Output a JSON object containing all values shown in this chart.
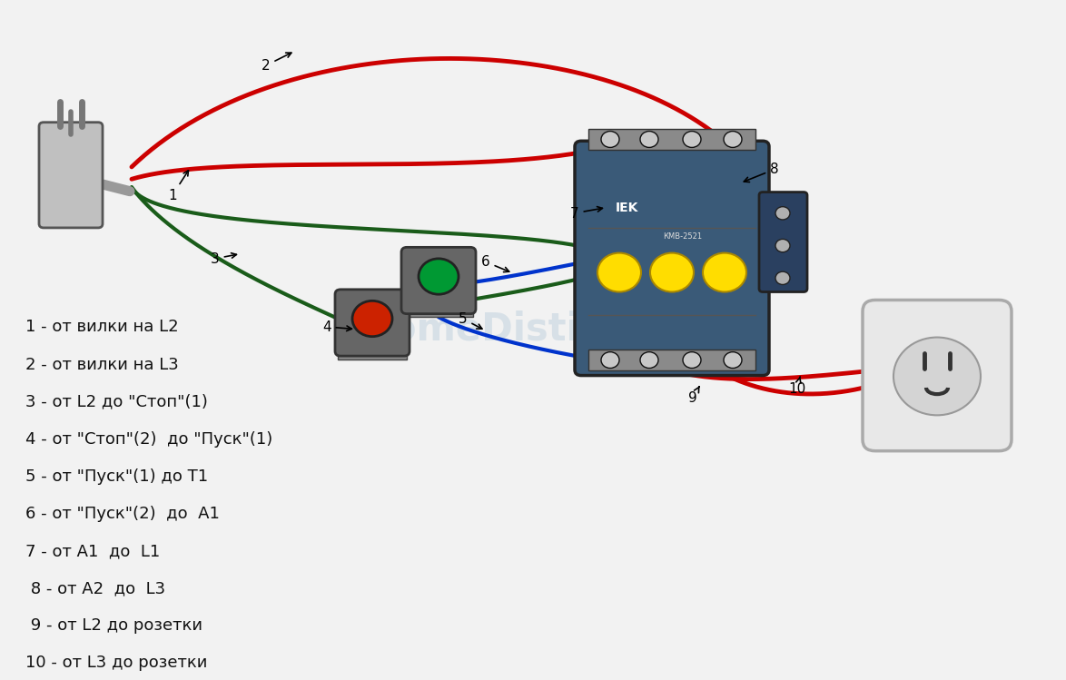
{
  "background_color": "#f2f2f2",
  "legend_lines": [
    "1 - от вилки на L2",
    "2 - от вилки на L3",
    "3 - от L2 до \"Стоп\"(1)",
    "4 - от \"Стоп\"(2)  до \"Пуск\"(1)",
    "5 - от \"Пуск\"(1) до Т1",
    "6 - от \"Пуск\"(2)  до  А1",
    "7 - от А1  до  L1",
    " 8 - от А2  до  L3",
    " 9 - от L2 до розетки",
    "10 - от L3 до розетки"
  ],
  "font_size_legend": 13,
  "font_size_labels": 11,
  "wire_red": "#cc0000",
  "wire_green": "#1a5c1a",
  "wire_blue": "#0033cc",
  "contactor_face": "#3a5a78",
  "button_red_face": "#cc2200",
  "button_green_face": "#009933"
}
